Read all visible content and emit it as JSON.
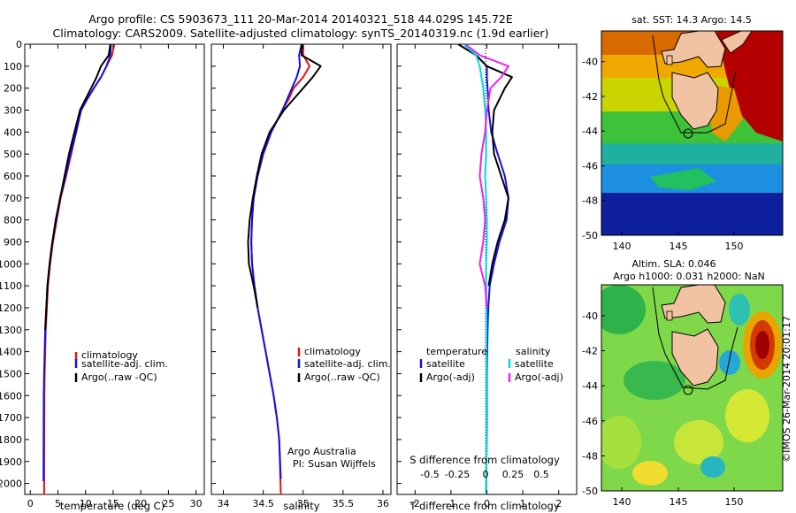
{
  "header": {
    "line1": "Argo profile: CS 5903673_111 20-Mar-2014 20140321_518 44.029S 145.72E",
    "line2": "Climatology: CARS2009. Satellite-adjusted climatology: synTS_20140319.nc (1.9d earlier)"
  },
  "colors": {
    "climatology": "#ee1111",
    "satellite": "#1111ee",
    "argo": "#000000",
    "cyan": "#00dddd",
    "magenta": "#ee22ee",
    "land": "#f2c3a3"
  },
  "depth_ticks": [
    0,
    100,
    200,
    300,
    400,
    500,
    600,
    700,
    800,
    900,
    1000,
    1100,
    1200,
    1300,
    1400,
    1500,
    1600,
    1700,
    1800,
    1900,
    2000
  ],
  "panels": {
    "temperature": {
      "xlabel": "temperature (deg C)",
      "xticks": [
        "0",
        "5",
        "10",
        "15",
        "20",
        "25",
        "30"
      ],
      "legend": [
        "climatology",
        "satellite-adj. clim.",
        "Argo(..raw -QC)"
      ]
    },
    "salinity": {
      "xlabel": "salinity",
      "xticks": [
        "34",
        "34.5",
        "35",
        "35.5",
        "36"
      ],
      "legend": [
        "climatology",
        "satellite-adj. clim.",
        "Argo(..raw -QC)"
      ],
      "credit1": "Argo Australia",
      "credit2": "PI: Susan Wijffels"
    },
    "difference": {
      "xlabel": "T difference from climatology",
      "top_label": "S difference from climatology",
      "xticks": [
        "-2",
        "-1",
        "0",
        "1",
        "2"
      ],
      "sticks": [
        "-0.5",
        "-0.25",
        "0",
        "0.25",
        "0.5"
      ],
      "legend_t_title": "temperature",
      "legend_s_title": "salinity",
      "legend_t": [
        "satellite",
        "Argo(-adj)"
      ],
      "legend_s": [
        "satellite",
        "Argo(-adj)"
      ]
    }
  },
  "maps": {
    "sst": {
      "title": "sat. SST: 14.3 Argo: 14.5"
    },
    "sla": {
      "title1": "Altim. SLA: 0.046",
      "title2": "Argo h1000: 0.031 h2000: NaN",
      "stamp": "©IMOS 26-Mar-2014 20:01:17"
    },
    "xticks": [
      "140",
      "145",
      "150"
    ],
    "yticks": [
      "-40",
      "-42",
      "-44",
      "-46",
      "-48",
      "-50"
    ]
  },
  "chart_data": [
    {
      "type": "line",
      "xlabel": "temperature (deg C)",
      "ylabel": "",
      "xlim": [
        -1,
        31.5
      ],
      "ylim": [
        2050,
        0
      ],
      "series": [
        {
          "name": "climatology",
          "x": [
            15.2,
            14.8,
            13.8,
            12.8,
            11.5,
            10.3,
            9.2,
            8.3,
            7.4,
            6.5,
            5.5,
            4.8,
            4.1,
            3.6,
            3.2,
            3.0,
            2.8,
            2.7,
            2.6,
            2.55,
            2.5
          ],
          "y": [
            0,
            50,
            100,
            150,
            200,
            250,
            300,
            400,
            500,
            600,
            700,
            800,
            900,
            1000,
            1100,
            1200,
            1300,
            1400,
            1500,
            1600,
            2050
          ]
        },
        {
          "name": "satellite-adj. clim.",
          "x": [
            14.6,
            14.5,
            13.8,
            12.8,
            11.5,
            10.3,
            9.2,
            8.3,
            7.3,
            6.4,
            5.4,
            4.7,
            4.0,
            3.5,
            3.1,
            2.9,
            2.7,
            2.6,
            2.5,
            2.45,
            2.4
          ],
          "y": [
            0,
            50,
            100,
            150,
            200,
            250,
            300,
            400,
            500,
            600,
            700,
            800,
            900,
            1000,
            1100,
            1200,
            1300,
            1400,
            1500,
            1600,
            1990
          ]
        },
        {
          "name": "Argo(..raw -QC)",
          "x": [
            14.5,
            14.2,
            12.8,
            12.0,
            11.0,
            10.0,
            9.0,
            8.0,
            7.0,
            6.2,
            5.4,
            4.6,
            4.0,
            3.5,
            3.1,
            2.9,
            2.7
          ],
          "y": [
            0,
            50,
            100,
            150,
            200,
            250,
            300,
            400,
            500,
            600,
            700,
            800,
            900,
            1000,
            1100,
            1200,
            1300
          ]
        }
      ]
    },
    {
      "type": "line",
      "xlabel": "salinity",
      "ylabel": "",
      "xlim": [
        33.85,
        36.1
      ],
      "ylim": [
        2050,
        0
      ],
      "series": [
        {
          "name": "climatology",
          "x": [
            35.0,
            35.0,
            35.08,
            35.0,
            34.88,
            34.82,
            34.74,
            34.6,
            34.5,
            34.43,
            34.38,
            34.36,
            34.35,
            34.36,
            34.39,
            34.43,
            34.48,
            34.53,
            34.58,
            34.63,
            34.67,
            34.7,
            34.72
          ],
          "y": [
            0,
            50,
            100,
            150,
            200,
            250,
            300,
            400,
            500,
            600,
            700,
            800,
            900,
            1000,
            1100,
            1200,
            1300,
            1400,
            1500,
            1600,
            1700,
            1800,
            2050
          ]
        },
        {
          "name": "satellite-adj. clim.",
          "x": [
            34.98,
            34.95,
            34.96,
            34.92,
            34.86,
            34.8,
            34.74,
            34.6,
            34.5,
            34.43,
            34.38,
            34.36,
            34.35,
            34.36,
            34.39,
            34.43,
            34.48,
            34.53,
            34.58,
            34.63,
            34.67,
            34.7,
            34.72
          ],
          "y": [
            0,
            50,
            100,
            150,
            200,
            250,
            300,
            400,
            500,
            600,
            700,
            800,
            900,
            1000,
            1100,
            1200,
            1300,
            1400,
            1500,
            1600,
            1700,
            1800,
            1980
          ]
        },
        {
          "name": "Argo(..raw -QC)",
          "x": [
            34.98,
            34.98,
            35.22,
            35.12,
            35.0,
            34.88,
            34.76,
            34.58,
            34.48,
            34.42,
            34.37,
            34.33,
            34.31,
            34.32,
            34.38,
            34.43
          ],
          "y": [
            0,
            50,
            100,
            150,
            200,
            250,
            300,
            400,
            500,
            600,
            700,
            800,
            900,
            1000,
            1100,
            1200
          ]
        }
      ]
    },
    {
      "type": "line",
      "xlabel": "T difference from climatology",
      "ylabel": "",
      "xlim": [
        -2.5,
        2.5
      ],
      "ylim": [
        2050,
        0
      ],
      "series": [
        {
          "name": "satellite",
          "x": [
            -0.6,
            -0.3,
            0.0,
            0.0,
            0.02,
            0.05,
            0.12,
            0.3,
            0.5,
            0.6,
            0.55,
            0.35,
            0.2,
            0.08,
            0.04,
            0.02,
            0.01,
            0.0,
            0.0,
            0.0,
            -0.02
          ],
          "y": [
            0,
            50,
            100,
            150,
            200,
            300,
            400,
            500,
            600,
            700,
            800,
            900,
            1000,
            1100,
            1200,
            1300,
            1400,
            1500,
            1600,
            1700,
            2050
          ]
        },
        {
          "name": "Argo(-adj)",
          "x": [
            -0.8,
            -0.3,
            0.0,
            0.7,
            0.5,
            0.2,
            0.15,
            0.2,
            0.4,
            0.6,
            0.5,
            0.3,
            0.15,
            0.05
          ],
          "y": [
            0,
            50,
            100,
            150,
            200,
            300,
            400,
            500,
            600,
            700,
            800,
            900,
            1000,
            1100
          ]
        },
        {
          "name": "satellite (S)",
          "x": [
            -0.65,
            -0.3,
            -0.2,
            -0.15,
            -0.1,
            -0.05,
            -0.02,
            -0.02,
            -0.05,
            -0.02,
            0.0,
            0.0,
            -0.02,
            -0.02,
            -0.01,
            -0.01,
            -0.01,
            -0.01,
            -0.01,
            -0.01,
            -0.01,
            -0.02
          ],
          "y": [
            0,
            50,
            100,
            150,
            200,
            300,
            400,
            500,
            600,
            700,
            800,
            900,
            1000,
            1100,
            1200,
            1300,
            1400,
            1500,
            1600,
            1700,
            1800,
            2050
          ]
        },
        {
          "name": "Argo(-adj) (S)",
          "x": [
            -0.6,
            -0.2,
            0.6,
            0.4,
            0.1,
            0.0,
            -0.05,
            -0.15,
            -0.2,
            -0.1,
            -0.05,
            -0.1,
            -0.2,
            -0.05,
            0.0
          ],
          "y": [
            0,
            50,
            100,
            150,
            200,
            300,
            400,
            500,
            600,
            700,
            800,
            900,
            1000,
            1100,
            1200
          ]
        }
      ]
    }
  ]
}
